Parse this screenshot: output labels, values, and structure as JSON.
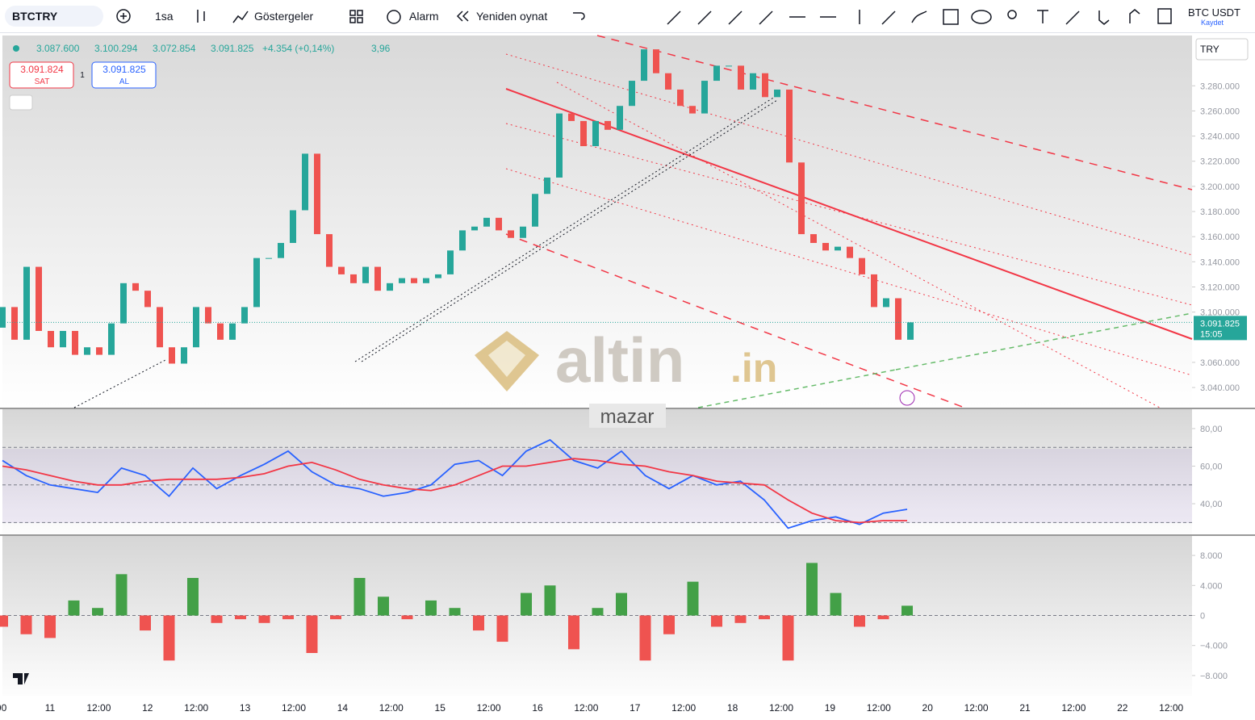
{
  "toolbar": {
    "symbol": "BTCTRY",
    "interval": "1sa",
    "indicators": "Göstergeler",
    "alarm": "Alarm",
    "replay": "Yeniden oynat",
    "pair": "BTC USDT",
    "save": "Kaydet",
    "currency": "TRY"
  },
  "header": {
    "open": "3.087.600",
    "high": "3.100.294",
    "low": "3.072.854",
    "close": "3.091.825",
    "change": "+4.354 (+0,14%)",
    "volume": "3,96",
    "sell_price": "3.091.824",
    "sell": "SAT",
    "spread": "1",
    "buy_price": "3.091.825",
    "buy": "AL"
  },
  "price_tag": {
    "price": "3.091.825",
    "countdown": "15:05"
  },
  "watermark": {
    "name": "altin",
    "suffix": ".in",
    "overlay": "mazar"
  },
  "time_labels": [
    "00",
    "11",
    "12:00",
    "12",
    "12:00",
    "13",
    "12:00",
    "14",
    "12:00",
    "15",
    "12:00",
    "16",
    "12:00",
    "17",
    "12:00",
    "18",
    "12:00",
    "19",
    "12:00",
    "20",
    "12:00",
    "21",
    "12:00",
    "22",
    "12:00"
  ],
  "chart_data": [
    {
      "type": "candlestick",
      "open": 3087600,
      "values": [
        3104000,
        3078000,
        3136000,
        3085000,
        3072000,
        3085000,
        3066000,
        3072000,
        3066000,
        3091000,
        3123000,
        3117000,
        3104000,
        3072000,
        3059000,
        3072000,
        3104000,
        3091000,
        3078000,
        3091000,
        3104000,
        3143000,
        3143000,
        3155000,
        3181000,
        3226000,
        3162000,
        3136000,
        3130000,
        3123000,
        3136000,
        3117000,
        3123000,
        3127000,
        3123000,
        3127000,
        3130000,
        3149000,
        3165000,
        3168000,
        3175000,
        3165000,
        3159000,
        3168000,
        3194000,
        3207000,
        3258000,
        3252000,
        3232000,
        3252000,
        3245000,
        3264000,
        3284000,
        3309000,
        3290000,
        3277000,
        3264000,
        3258000,
        3284000,
        3296000,
        3296000,
        3277000,
        3290000,
        3271000,
        3277000,
        3219000,
        3162000,
        3155000,
        3149000,
        3152000,
        3143000,
        3130000,
        3104000,
        3111000,
        3078000,
        3091825
      ],
      "up_color": "#26a69a",
      "down_color": "#ef5350",
      "ylim": [
        3024000,
        3320000
      ],
      "yticks": [
        {
          "value": 3040000,
          "label": "3.040.000"
        },
        {
          "value": 3060000,
          "label": "3.060.000"
        },
        {
          "value": 3100000,
          "label": "3.100.000"
        },
        {
          "value": 3120000,
          "label": "3.120.000"
        },
        {
          "value": 3140000,
          "label": "3.140.000"
        },
        {
          "value": 3160000,
          "label": "3.160.000"
        },
        {
          "value": 3180000,
          "label": "3.180.000"
        },
        {
          "value": 3200000,
          "label": "3.200.000"
        },
        {
          "value": 3220000,
          "label": "3.220.000"
        },
        {
          "value": 3240000,
          "label": "3.240.000"
        },
        {
          "value": 3260000,
          "label": "3.260.000"
        },
        {
          "value": 3280000,
          "label": "3.280.000"
        }
      ]
    },
    {
      "type": "line",
      "series": [
        {
          "color": "#2962ff",
          "values": [
            63,
            55,
            50,
            48,
            46,
            59,
            55,
            44,
            59,
            48,
            55,
            61,
            68,
            57,
            50,
            48,
            44,
            46,
            50,
            61,
            63,
            55,
            68,
            74,
            63,
            59,
            68,
            55,
            48,
            55,
            50,
            52,
            42,
            27,
            31,
            33,
            29,
            35,
            37
          ]
        },
        {
          "color": "#f23645",
          "values": [
            60,
            58,
            55,
            52,
            50,
            50,
            52,
            53,
            53,
            53,
            54,
            56,
            60,
            62,
            58,
            53,
            50,
            48,
            47,
            50,
            55,
            60,
            60,
            62,
            64,
            63,
            61,
            60,
            57,
            55,
            52,
            51,
            50,
            42,
            35,
            31,
            30,
            31,
            31
          ]
        }
      ],
      "ylim": [
        23.7,
        90.3
      ],
      "yticks": [
        {
          "value": 80,
          "label": "80,00"
        },
        {
          "value": 60,
          "label": "60,00"
        },
        {
          "value": 40,
          "label": "40,00"
        }
      ],
      "bands": [
        70,
        50,
        30
      ]
    },
    {
      "type": "histogram",
      "values": [
        -1500,
        -2500,
        -3000,
        2000,
        1000,
        5500,
        -2000,
        -6000,
        5000,
        -1000,
        -500,
        -1000,
        -500,
        -5000,
        -500,
        5000,
        2500,
        -500,
        2000,
        1000,
        -2000,
        -3500,
        3000,
        4000,
        -4500,
        1000,
        3000,
        -6000,
        -2500,
        4500,
        -1500,
        -1000,
        -500,
        -6000,
        7000,
        3000,
        -1500,
        -500,
        1300
      ],
      "up_color": "#43a047",
      "down_color": "#ef5350",
      "ylim": [
        -10700,
        10700
      ],
      "yticks": [
        {
          "value": 8000,
          "label": "8.000"
        },
        {
          "value": 4000,
          "label": "4.000"
        },
        0,
        {
          "value": -4000,
          "label": "−4.000"
        },
        {
          "value": -8000,
          "label": "−8.000"
        }
      ]
    }
  ]
}
